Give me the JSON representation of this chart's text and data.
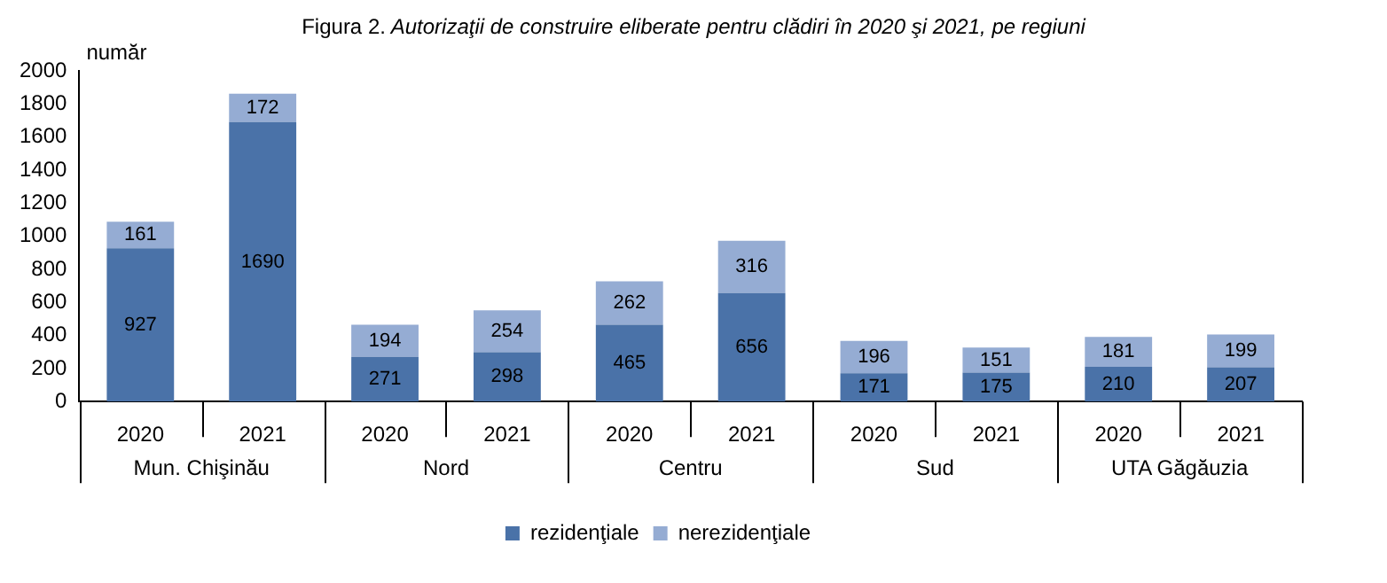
{
  "chart_data": {
    "type": "bar",
    "title": "Figura 2. Autorizaţii de construire eliberate pentru clădiri în 2020 şi 2021, pe regiuni",
    "ylabel": "număr",
    "categories": [
      "2020",
      "2021",
      "2020",
      "2021",
      "2020",
      "2021",
      "2020",
      "2021",
      "2020",
      "2021"
    ],
    "annotations": [
      "Mun. Chişinău",
      "Nord",
      "Centru",
      "Sud",
      "UTA Găgăuzia"
    ],
    "series": [
      {
        "name": "rezidenţiale",
        "color": "#4a72a8",
        "values": [
          927,
          1690,
          271,
          298,
          465,
          656,
          171,
          175,
          210,
          207
        ]
      },
      {
        "name": "nerezidenţiale",
        "color": "#95acd3",
        "values": [
          161,
          172,
          194,
          254,
          262,
          316,
          196,
          151,
          181,
          199
        ]
      }
    ],
    "stacked": true,
    "data_labels": true,
    "ylim": [
      0,
      2000
    ],
    "yticks": [
      0,
      200,
      400,
      600,
      800,
      1000,
      1200,
      1400,
      1600,
      1800,
      2000
    ],
    "grid": false,
    "legend": "bottom"
  }
}
